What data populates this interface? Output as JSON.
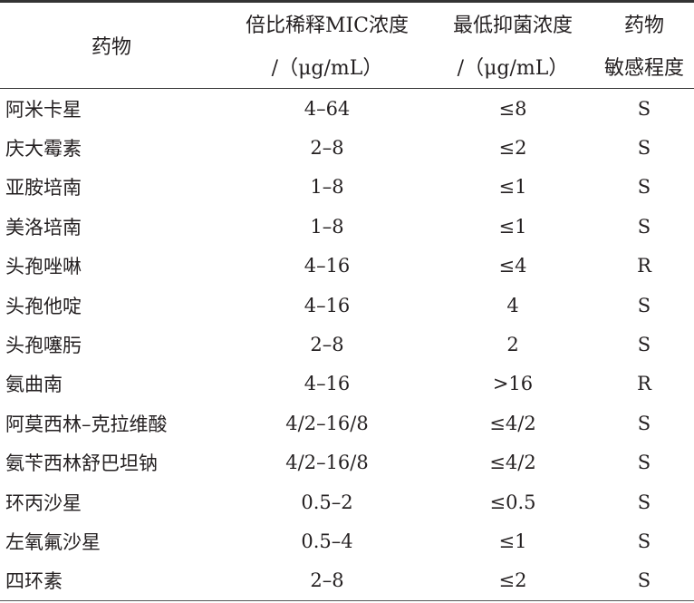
{
  "header": {
    "drug": "药物",
    "mic_range_line1": "倍比稀释MIC浓度",
    "mic_range_line2": "/（μg/mL）",
    "mic_line1": "最低抑菌浓度",
    "mic_line2": "/（μg/mL）",
    "sensitivity_line1": "药物",
    "sensitivity_line2": "敏感程度"
  },
  "rows": [
    {
      "drug": "阿米卡星",
      "range": "4–64",
      "mic": "≤8",
      "sens": "S"
    },
    {
      "drug": "庆大霉素",
      "range": "2–8",
      "mic": "≤2",
      "sens": "S"
    },
    {
      "drug": "亚胺培南",
      "range": "1–8",
      "mic": "≤1",
      "sens": "S"
    },
    {
      "drug": "美洛培南",
      "range": "1–8",
      "mic": "≤1",
      "sens": "S"
    },
    {
      "drug": "头孢唑啉",
      "range": "4–16",
      "mic": "≤4",
      "sens": "R"
    },
    {
      "drug": "头孢他啶",
      "range": "4–16",
      "mic": "4",
      "sens": "S"
    },
    {
      "drug": "头孢噻肟",
      "range": "2–8",
      "mic": "2",
      "sens": "S"
    },
    {
      "drug": "氨曲南",
      "range": "4–16",
      "mic": ">16",
      "sens": "R"
    },
    {
      "drug": "阿莫西林–克拉维酸",
      "range": "4/2–16/8",
      "mic": "≤4/2",
      "sens": "S"
    },
    {
      "drug": "氨苄西林舒巴坦钠",
      "range": "4/2–16/8",
      "mic": "≤4/2",
      "sens": "S"
    },
    {
      "drug": "环丙沙星",
      "range": "0.5–2",
      "mic": "≤0.5",
      "sens": "S"
    },
    {
      "drug": "左氧氟沙星",
      "range": "0.5–4",
      "mic": "≤1",
      "sens": "S"
    },
    {
      "drug": "四环素",
      "range": "2–8",
      "mic": "≤2",
      "sens": "S"
    }
  ]
}
